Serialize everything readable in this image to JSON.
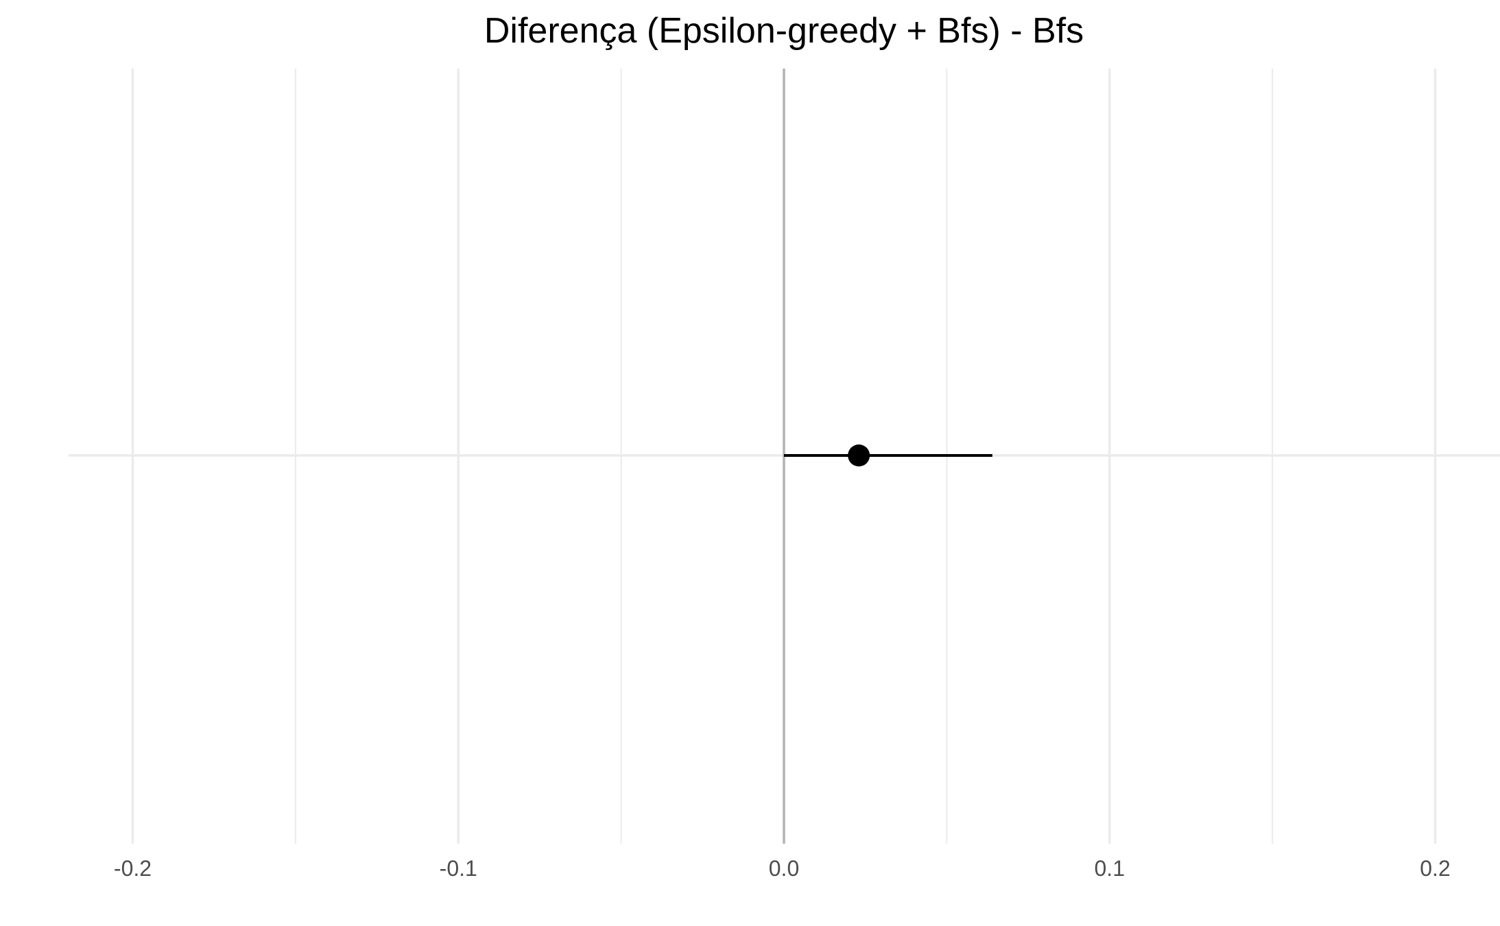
{
  "chart_data": {
    "type": "scatter",
    "title": "Diferença (Epsilon-greedy + Bfs) - Bfs",
    "xlabel": "",
    "ylabel": "",
    "xlim": [
      -0.22,
      0.22
    ],
    "x_ticks": [
      -0.2,
      -0.1,
      0.0,
      0.1,
      0.2
    ],
    "x_tick_labels": [
      "-0.2",
      "-0.1",
      "0.0",
      "0.1",
      "0.2"
    ],
    "x_minor_ticks": [
      -0.15,
      -0.05,
      0.05,
      0.15
    ],
    "grid": true,
    "reference_line_x": 0.0,
    "points": [
      {
        "estimate": 0.023,
        "ci_low": 0.0,
        "ci_high": 0.064
      }
    ],
    "colors": {
      "grid": "#ebebeb",
      "reference_line": "#b3b3b3",
      "point": "#000000",
      "tick_text": "#4d4d4d"
    }
  }
}
